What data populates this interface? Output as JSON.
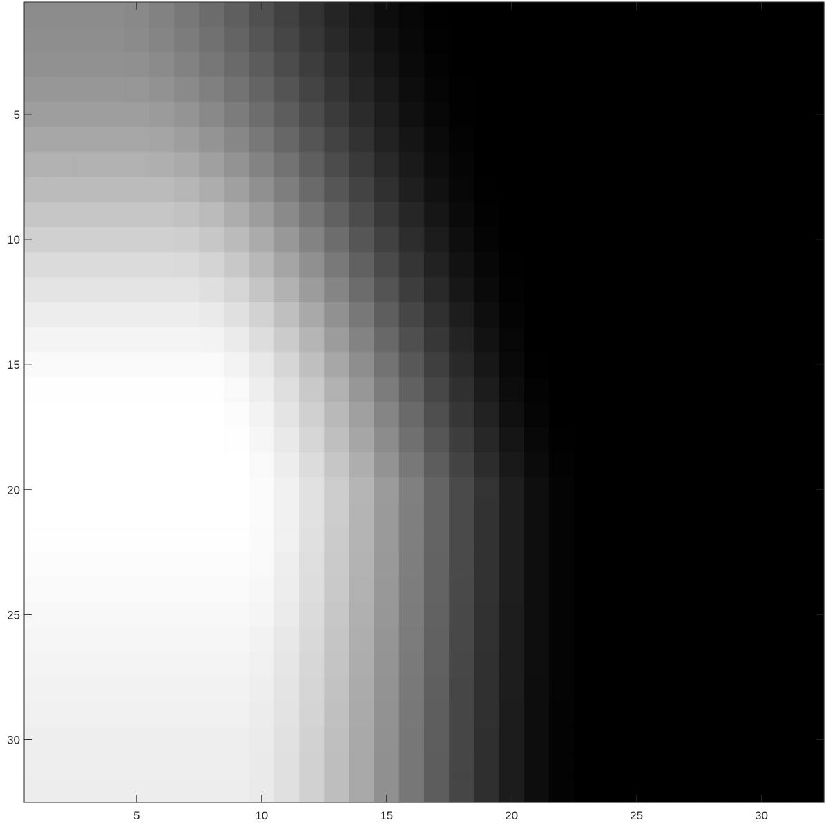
{
  "chart_data": {
    "type": "heatmap",
    "colormap": "gray",
    "rows": 32,
    "cols": 32,
    "x_range": [
      1,
      32
    ],
    "y_range": [
      1,
      32
    ],
    "y_direction": "reversed",
    "x_ticks": [
      5,
      10,
      15,
      20,
      25,
      30
    ],
    "y_ticks": [
      5,
      10,
      15,
      20,
      25,
      30
    ],
    "x_tick_labels": [
      "5",
      "10",
      "15",
      "20",
      "25",
      "30"
    ],
    "y_tick_labels": [
      "5",
      "10",
      "15",
      "20",
      "25",
      "30"
    ],
    "title": "",
    "xlabel": "",
    "ylabel": "",
    "grid": false,
    "value_model": {
      "description": "intensity 0-255 per cell estimated from the image",
      "peak_value": 255,
      "peak_col": 5,
      "peak_row": 20,
      "falloff_start_col": 9,
      "falloff_end_col": 23,
      "top_row_dimming": 0.55,
      "bottom_row_dimming": 0.93
    }
  }
}
